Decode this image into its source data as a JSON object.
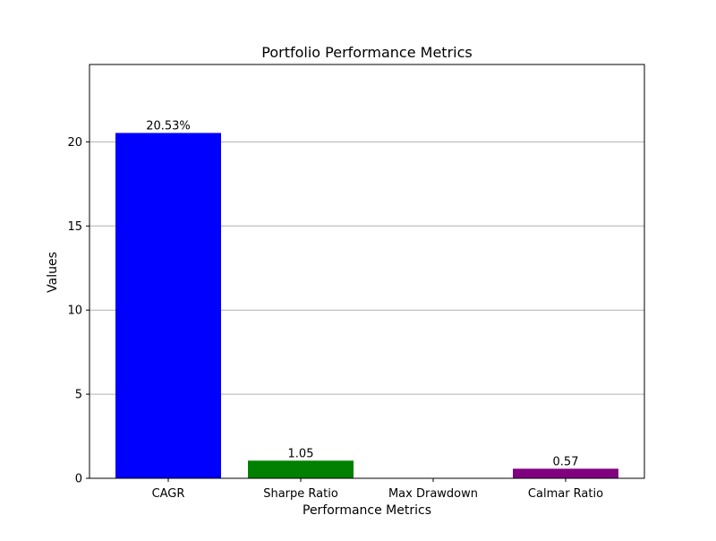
{
  "chart_data": {
    "type": "bar",
    "title": "Portfolio Performance Metrics",
    "xlabel": "Performance Metrics",
    "ylabel": "Values",
    "categories": [
      "CAGR",
      "Sharpe Ratio",
      "Max Drawdown",
      "Calmar Ratio"
    ],
    "values": [
      20.53,
      1.05,
      0,
      0.57
    ],
    "value_labels": [
      "20.53%",
      "1.05",
      "",
      "0.57"
    ],
    "colors": [
      "#0000ff",
      "#008000",
      "#ff0000",
      "#800080"
    ],
    "ylim": [
      0,
      24.6
    ],
    "yticks": [
      0,
      5,
      10,
      15,
      20
    ],
    "grid": "y"
  }
}
